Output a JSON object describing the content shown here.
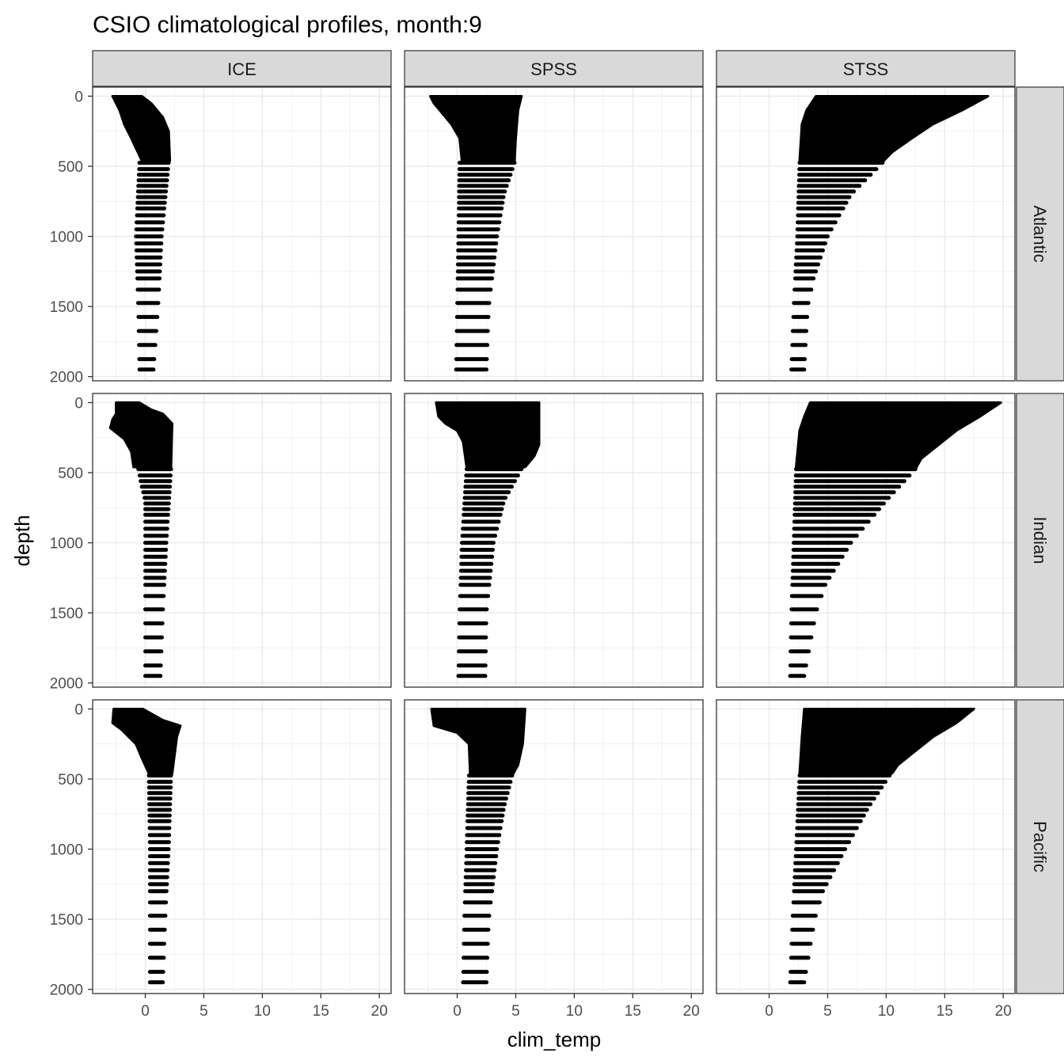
{
  "chart_data": {
    "type": "scatter",
    "title": "CSIO climatological profiles, month:9",
    "xlabel": "clim_temp",
    "ylabel": "depth",
    "xlim": [
      -4.5,
      21
    ],
    "ylim": [
      2030,
      -65
    ],
    "x_ticks": [
      0,
      5,
      10,
      15,
      20
    ],
    "y_ticks": [
      0,
      500,
      1000,
      1500,
      2000
    ],
    "x_tick_labels": [
      "0",
      "5",
      "10",
      "15",
      "20"
    ],
    "y_tick_labels": [
      "0",
      "500",
      "1000",
      "1500",
      "2000"
    ],
    "grid": true,
    "facet_columns": [
      "ICE",
      "SPSS",
      "STSS"
    ],
    "facet_rows": [
      "Atlantic",
      "Indian",
      "Pacific"
    ],
    "deep_depths": [
      475,
      520,
      560,
      600,
      640,
      680,
      720,
      760,
      800,
      850,
      900,
      950,
      1000,
      1050,
      1100,
      1150,
      1200,
      1250,
      1300,
      1380,
      1475,
      1575,
      1675,
      1775,
      1875,
      1950
    ],
    "panels": [
      {
        "row": "Atlantic",
        "col": "ICE",
        "surface_depth": 460,
        "profile_min": [
          [
            0,
            -2.8
          ],
          [
            50,
            -2.5
          ],
          [
            100,
            -2.2
          ],
          [
            200,
            -1.8
          ],
          [
            300,
            -1.2
          ],
          [
            460,
            -0.3
          ]
        ],
        "profile_max": [
          [
            0,
            -0.3
          ],
          [
            50,
            0.5
          ],
          [
            150,
            1.5
          ],
          [
            250,
            2.0
          ],
          [
            460,
            2.1
          ]
        ],
        "deep_min": [
          [
            475,
            -0.5
          ],
          [
            1000,
            -0.8
          ],
          [
            1500,
            -0.6
          ],
          [
            1950,
            -0.5
          ]
        ],
        "deep_max": [
          [
            475,
            2.0
          ],
          [
            1000,
            1.4
          ],
          [
            1500,
            1.1
          ],
          [
            1950,
            0.7
          ]
        ]
      },
      {
        "row": "Atlantic",
        "col": "SPSS",
        "surface_depth": 460,
        "profile_min": [
          [
            0,
            -2.3
          ],
          [
            50,
            -2.0
          ],
          [
            100,
            -1.5
          ],
          [
            200,
            -0.5
          ],
          [
            300,
            0.2
          ],
          [
            460,
            0.4
          ]
        ],
        "profile_max": [
          [
            0,
            5.5
          ],
          [
            100,
            5.2
          ],
          [
            300,
            5.0
          ],
          [
            460,
            4.9
          ]
        ],
        "deep_min": [
          [
            475,
            0.2
          ],
          [
            1000,
            0.1
          ],
          [
            1500,
            0.0
          ],
          [
            1950,
            -0.1
          ]
        ],
        "deep_max": [
          [
            475,
            4.9
          ],
          [
            700,
            4.0
          ],
          [
            1000,
            3.4
          ],
          [
            1500,
            2.7
          ],
          [
            1950,
            2.5
          ]
        ]
      },
      {
        "row": "Atlantic",
        "col": "STSS",
        "surface_depth": 460,
        "profile_min": [
          [
            0,
            4.0
          ],
          [
            100,
            3.2
          ],
          [
            200,
            2.8
          ],
          [
            460,
            2.6
          ]
        ],
        "profile_max": [
          [
            0,
            18.7
          ],
          [
            100,
            16.5
          ],
          [
            200,
            14.0
          ],
          [
            300,
            12.2
          ],
          [
            400,
            10.5
          ],
          [
            460,
            9.8
          ]
        ],
        "deep_min": [
          [
            475,
            2.6
          ],
          [
            1000,
            2.4
          ],
          [
            1500,
            2.1
          ],
          [
            1950,
            1.9
          ]
        ],
        "deep_max": [
          [
            475,
            9.7
          ],
          [
            700,
            7.0
          ],
          [
            1000,
            5.0
          ],
          [
            1300,
            3.8
          ],
          [
            1500,
            3.3
          ],
          [
            1950,
            3.0
          ]
        ]
      },
      {
        "row": "Indian",
        "col": "ICE",
        "surface_depth": 460,
        "profile_min": [
          [
            0,
            -2.5
          ],
          [
            80,
            -2.5
          ],
          [
            120,
            -2.8
          ],
          [
            180,
            -3.0
          ],
          [
            260,
            -1.8
          ],
          [
            350,
            -1.2
          ],
          [
            460,
            -1.0
          ]
        ],
        "profile_max": [
          [
            0,
            -0.5
          ],
          [
            50,
            0.5
          ],
          [
            80,
            1.5
          ],
          [
            150,
            2.3
          ],
          [
            460,
            2.2
          ]
        ],
        "deep_min": [
          [
            475,
            -0.6
          ],
          [
            600,
            -0.3
          ],
          [
            700,
            0.0
          ],
          [
            1000,
            0.0
          ],
          [
            1950,
            0.0
          ]
        ],
        "deep_max": [
          [
            475,
            2.2
          ],
          [
            1000,
            1.8
          ],
          [
            1500,
            1.5
          ],
          [
            1950,
            1.3
          ]
        ]
      },
      {
        "row": "Indian",
        "col": "SPSS",
        "surface_depth": 460,
        "profile_min": [
          [
            0,
            -1.8
          ],
          [
            100,
            -1.6
          ],
          [
            150,
            -1.0
          ],
          [
            200,
            0.0
          ],
          [
            280,
            0.5
          ],
          [
            460,
            0.8
          ]
        ],
        "profile_max": [
          [
            0,
            7.0
          ],
          [
            300,
            7.0
          ],
          [
            380,
            6.6
          ],
          [
            460,
            5.8
          ]
        ],
        "deep_min": [
          [
            475,
            0.8
          ],
          [
            1000,
            0.4
          ],
          [
            1500,
            0.2
          ],
          [
            1950,
            0.1
          ]
        ],
        "deep_max": [
          [
            475,
            5.5
          ],
          [
            700,
            4.0
          ],
          [
            1000,
            3.1
          ],
          [
            1500,
            2.5
          ],
          [
            1950,
            2.4
          ]
        ]
      },
      {
        "row": "Indian",
        "col": "STSS",
        "surface_depth": 460,
        "profile_min": [
          [
            0,
            3.5
          ],
          [
            100,
            3.0
          ],
          [
            200,
            2.6
          ],
          [
            460,
            2.3
          ]
        ],
        "profile_max": [
          [
            0,
            19.8
          ],
          [
            100,
            18.0
          ],
          [
            200,
            16.0
          ],
          [
            300,
            14.5
          ],
          [
            400,
            13.0
          ],
          [
            460,
            12.6
          ]
        ],
        "deep_min": [
          [
            475,
            2.3
          ],
          [
            1000,
            2.1
          ],
          [
            1500,
            1.9
          ],
          [
            1950,
            1.8
          ]
        ],
        "deep_max": [
          [
            475,
            12.5
          ],
          [
            700,
            10.0
          ],
          [
            1000,
            7.0
          ],
          [
            1300,
            4.8
          ],
          [
            1500,
            4.0
          ],
          [
            1950,
            3.0
          ]
        ]
      },
      {
        "row": "Pacific",
        "col": "ICE",
        "surface_depth": 460,
        "profile_min": [
          [
            0,
            -2.7
          ],
          [
            100,
            -2.8
          ],
          [
            150,
            -2.0
          ],
          [
            250,
            -0.8
          ],
          [
            350,
            -0.3
          ],
          [
            460,
            0.3
          ]
        ],
        "profile_max": [
          [
            0,
            -0.2
          ],
          [
            80,
            1.5
          ],
          [
            120,
            3.0
          ],
          [
            200,
            2.7
          ],
          [
            460,
            2.3
          ]
        ],
        "deep_min": [
          [
            475,
            0.3
          ],
          [
            1000,
            0.4
          ],
          [
            1500,
            0.4
          ],
          [
            1950,
            0.4
          ]
        ],
        "deep_max": [
          [
            475,
            2.2
          ],
          [
            1000,
            2.0
          ],
          [
            1500,
            1.7
          ],
          [
            1950,
            1.5
          ]
        ]
      },
      {
        "row": "Pacific",
        "col": "SPSS",
        "surface_depth": 460,
        "profile_min": [
          [
            0,
            -2.2
          ],
          [
            120,
            -2.0
          ],
          [
            170,
            0.0
          ],
          [
            250,
            1.0
          ],
          [
            460,
            1.1
          ]
        ],
        "profile_max": [
          [
            0,
            5.8
          ],
          [
            250,
            5.6
          ],
          [
            400,
            5.2
          ],
          [
            460,
            4.8
          ]
        ],
        "deep_min": [
          [
            475,
            1.0
          ],
          [
            1000,
            0.8
          ],
          [
            1500,
            0.6
          ],
          [
            1950,
            0.5
          ]
        ],
        "deep_max": [
          [
            475,
            4.7
          ],
          [
            700,
            4.0
          ],
          [
            1000,
            3.4
          ],
          [
            1500,
            2.7
          ],
          [
            1950,
            2.5
          ]
        ]
      },
      {
        "row": "Pacific",
        "col": "STSS",
        "surface_depth": 460,
        "profile_min": [
          [
            0,
            3.0
          ],
          [
            200,
            2.8
          ],
          [
            460,
            2.6
          ]
        ],
        "profile_max": [
          [
            0,
            17.5
          ],
          [
            100,
            16.0
          ],
          [
            200,
            14.0
          ],
          [
            300,
            12.5
          ],
          [
            400,
            11.0
          ],
          [
            460,
            10.5
          ]
        ],
        "deep_min": [
          [
            475,
            2.6
          ],
          [
            1000,
            2.3
          ],
          [
            1500,
            2.0
          ],
          [
            1950,
            1.8
          ]
        ],
        "deep_max": [
          [
            475,
            10.3
          ],
          [
            700,
            8.5
          ],
          [
            1000,
            6.5
          ],
          [
            1300,
            4.6
          ],
          [
            1500,
            3.9
          ],
          [
            1950,
            3.0
          ]
        ]
      }
    ]
  }
}
